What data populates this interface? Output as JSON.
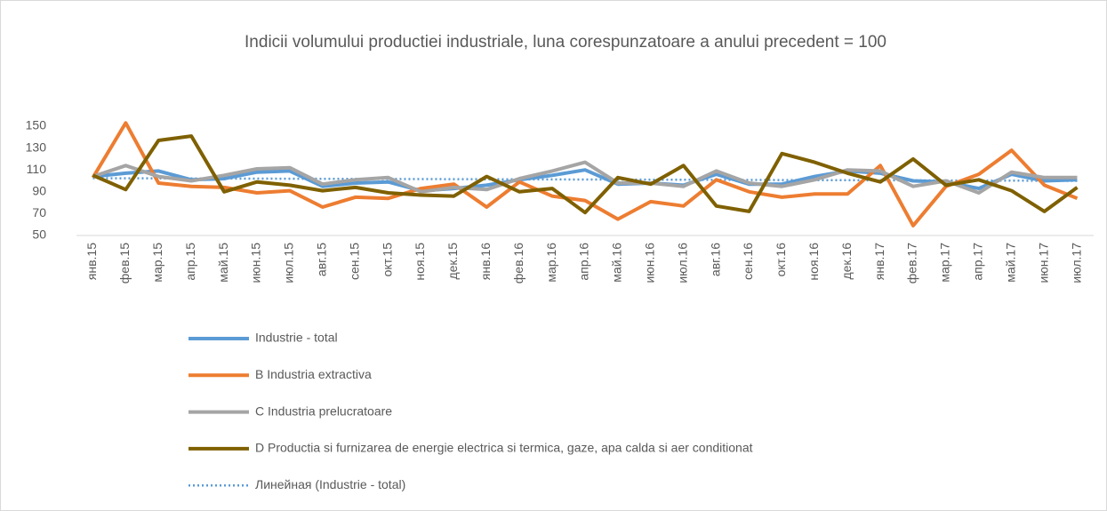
{
  "chart_data": {
    "type": "line",
    "title": "Indicii volumului productiei industriale,  luna corespunzatoare a anului precedent = 100",
    "categories": [
      "янв.15",
      "фев.15",
      "мар.15",
      "апр.15",
      "май.15",
      "июн.15",
      "июл.15",
      "авг.15",
      "сен.15",
      "окт.15",
      "ноя.15",
      "дек.15",
      "янв.16",
      "фев.16",
      "мар.16",
      "апр.16",
      "май.16",
      "июн.16",
      "июл.16",
      "авг.16",
      "сен.16",
      "окт.16",
      "ноя.16",
      "дек.16",
      "янв.17",
      "фев.17",
      "мар.17",
      "апр.17",
      "май.17",
      "июн.17",
      "июл.17"
    ],
    "series": [
      {
        "name": "Industrie - total",
        "color": "#5b9bd5",
        "values": [
          104,
          107,
          109,
          101,
          102,
          108,
          109,
          95,
          98,
          99,
          91,
          93,
          96,
          101,
          105,
          110,
          97,
          98,
          96,
          106,
          97,
          97,
          104,
          109,
          107,
          100,
          99,
          93,
          106,
          100,
          101
        ]
      },
      {
        "name": "B Industria extractiva",
        "color": "#ed7d31",
        "values": [
          103,
          153,
          98,
          95,
          94,
          89,
          91,
          76,
          85,
          84,
          93,
          97,
          76,
          99,
          86,
          82,
          65,
          81,
          77,
          101,
          90,
          85,
          88,
          88,
          114,
          59,
          95,
          106,
          128,
          96,
          84
        ]
      },
      {
        "name": "C Industria prelucratoare",
        "color": "#a5a5a5",
        "values": [
          104,
          114,
          104,
          100,
          105,
          111,
          112,
          97,
          101,
          103,
          90,
          94,
          92,
          102,
          109,
          117,
          98,
          98,
          95,
          109,
          98,
          95,
          101,
          110,
          109,
          95,
          100,
          89,
          108,
          103,
          103
        ]
      },
      {
        "name": "D Productia si furnizarea de energie electrica si termica, gaze, apa calda si aer conditionat",
        "color": "#7f6000",
        "values": [
          105,
          92,
          137,
          141,
          90,
          99,
          96,
          91,
          94,
          89,
          87,
          86,
          104,
          90,
          93,
          71,
          103,
          97,
          114,
          77,
          72,
          125,
          117,
          107,
          99,
          120,
          96,
          101,
          91,
          72,
          94
        ]
      }
    ],
    "trendline": {
      "name": "Линейная (Industrie - total)",
      "color": "#5b9bd5",
      "series": 0
    },
    "ylim": [
      50,
      150
    ],
    "yticks": [
      50,
      70,
      90,
      110,
      130,
      150
    ],
    "grid": false
  }
}
